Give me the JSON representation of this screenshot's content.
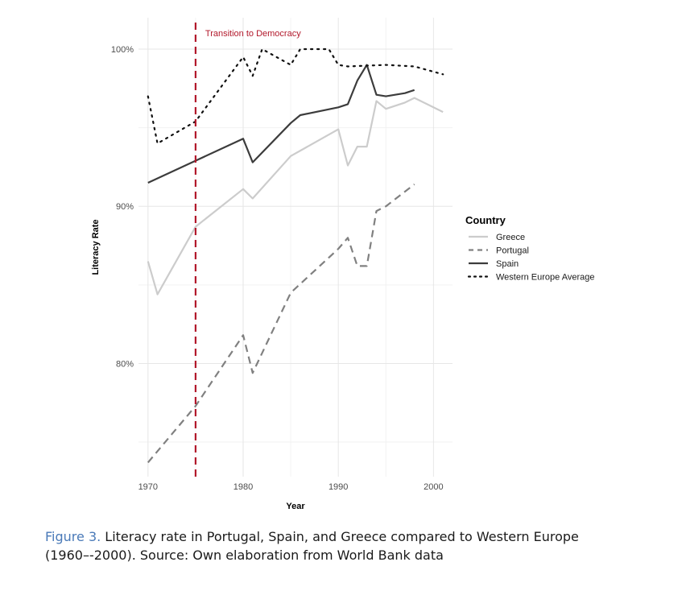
{
  "chart_data": {
    "type": "line",
    "xlabel": "Year",
    "ylabel": "Literacy Rate",
    "xlim": [
      1969,
      2002
    ],
    "ylim": [
      72.8,
      102
    ],
    "x_ticks": [
      1970,
      1980,
      1990,
      2000
    ],
    "x_tick_labels": [
      "1970",
      "1980",
      "1990",
      "2000"
    ],
    "y_ticks": [
      80,
      90,
      100
    ],
    "y_tick_labels": [
      "80%",
      "90%",
      "100%"
    ],
    "grid": true,
    "legend_title": "Country",
    "legend_position": "right",
    "annotation": {
      "x": 1975,
      "text": "Transition to Democracy",
      "color": "#b2182b"
    },
    "series": [
      {
        "name": "Greece",
        "color": "#cccccc",
        "dash": "solid",
        "width": 2.2,
        "points": [
          [
            1970,
            86.5
          ],
          [
            1971,
            84.4
          ],
          [
            1975,
            88.7
          ],
          [
            1980,
            91.1
          ],
          [
            1981,
            90.5
          ],
          [
            1985,
            93.2
          ],
          [
            1990,
            94.9
          ],
          [
            1991,
            92.6
          ],
          [
            1992,
            93.8
          ],
          [
            1993,
            93.8
          ],
          [
            1994,
            96.7
          ],
          [
            1995,
            96.2
          ],
          [
            1997,
            96.6
          ],
          [
            1998,
            96.9
          ],
          [
            2001,
            96.0
          ]
        ]
      },
      {
        "name": "Portugal",
        "color": "#808080",
        "dash": "dashed",
        "width": 2.2,
        "points": [
          [
            1970,
            73.7
          ],
          [
            1975,
            77.3
          ],
          [
            1980,
            81.8
          ],
          [
            1981,
            79.4
          ],
          [
            1985,
            84.5
          ],
          [
            1990,
            87.3
          ],
          [
            1991,
            88.0
          ],
          [
            1992,
            86.2
          ],
          [
            1993,
            86.2
          ],
          [
            1994,
            89.7
          ],
          [
            1995,
            90.0
          ],
          [
            1998,
            91.4
          ]
        ]
      },
      {
        "name": "Spain",
        "color": "#3c3c3c",
        "dash": "solid",
        "width": 2.2,
        "points": [
          [
            1970,
            91.5
          ],
          [
            1975,
            92.9
          ],
          [
            1980,
            94.3
          ],
          [
            1981,
            92.8
          ],
          [
            1985,
            95.3
          ],
          [
            1986,
            95.8
          ],
          [
            1990,
            96.3
          ],
          [
            1991,
            96.5
          ],
          [
            1992,
            98.0
          ],
          [
            1993,
            99.0
          ],
          [
            1994,
            97.1
          ],
          [
            1995,
            97.0
          ],
          [
            1997,
            97.2
          ],
          [
            1998,
            97.4
          ]
        ]
      },
      {
        "name": "Western Europe Average",
        "color": "#111111",
        "dash": "dotted",
        "width": 2.2,
        "points": [
          [
            1970,
            97.0
          ],
          [
            1971,
            94.0
          ],
          [
            1975,
            95.4
          ],
          [
            1980,
            99.5
          ],
          [
            1981,
            98.3
          ],
          [
            1982,
            100.0
          ],
          [
            1985,
            99.0
          ],
          [
            1986,
            100.0
          ],
          [
            1989,
            100.0
          ],
          [
            1990,
            99.0
          ],
          [
            1991,
            98.9
          ],
          [
            1995,
            99.0
          ],
          [
            1998,
            98.9
          ],
          [
            2001,
            98.4
          ]
        ]
      }
    ]
  },
  "caption": {
    "label": "Figure 3.",
    "text": " Literacy rate in Portugal, Spain, and Greece compared to Western Europe (1960–-2000). Source: Own elaboration from World Bank data"
  }
}
